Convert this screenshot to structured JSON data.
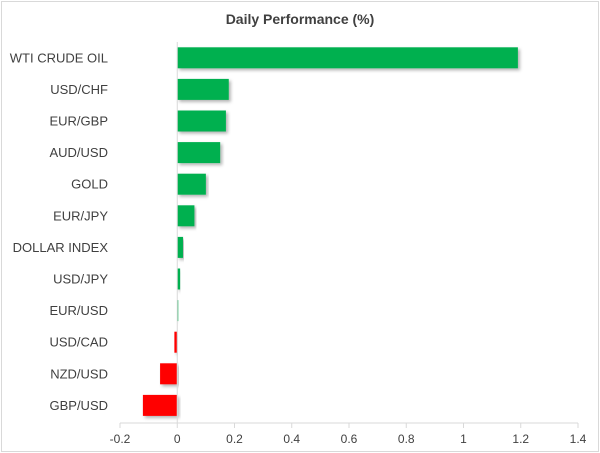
{
  "chart_data": {
    "type": "bar",
    "orientation": "horizontal",
    "title": "Daily Performance (%)",
    "xlabel": "",
    "ylabel": "",
    "categories": [
      "WTI CRUDE OIL",
      "USD/CHF",
      "EUR/GBP",
      "AUD/USD",
      "GOLD",
      "EUR/JPY",
      "DOLLAR INDEX",
      "USD/JPY",
      "EUR/USD",
      "USD/CAD",
      "NZD/USD",
      "GBP/USD"
    ],
    "values": [
      1.19,
      0.18,
      0.17,
      0.15,
      0.1,
      0.06,
      0.02,
      0.01,
      0.002,
      -0.01,
      -0.06,
      -0.12
    ],
    "xlim": [
      -0.2,
      1.4
    ],
    "xticks": [
      -0.2,
      0,
      0.2,
      0.4,
      0.6,
      0.8,
      1,
      1.2,
      1.4
    ],
    "xtick_labels": [
      "-0.2",
      "0",
      "0.2",
      "0.4",
      "0.6",
      "0.8",
      "1",
      "1.2",
      "1.4"
    ],
    "grid": false,
    "legend": "none",
    "colors": {
      "positive": "#00b050",
      "negative": "#ff0000",
      "axis": "#d9d9d9",
      "text": "#404040"
    }
  }
}
